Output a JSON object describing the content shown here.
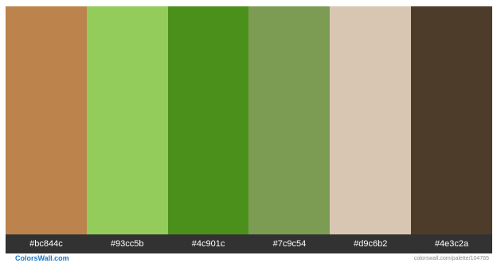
{
  "palette": {
    "swatches": [
      {
        "hex": "#bc844c",
        "label": "#bc844c"
      },
      {
        "hex": "#93cc5b",
        "label": "#93cc5b"
      },
      {
        "hex": "#4c901c",
        "label": "#4c901c"
      },
      {
        "hex": "#7c9c54",
        "label": "#7c9c54"
      },
      {
        "hex": "#d9c6b2",
        "label": "#d9c6b2"
      },
      {
        "hex": "#4e3c2a",
        "label": "#4e3c2a"
      }
    ]
  },
  "footer": {
    "brand": "ColorsWall.com",
    "url": "colorswall.com/palette/104765"
  },
  "colors": {
    "label_bar": "#323232",
    "brand": "#1a73c7",
    "url_text": "#8a8a8a"
  }
}
